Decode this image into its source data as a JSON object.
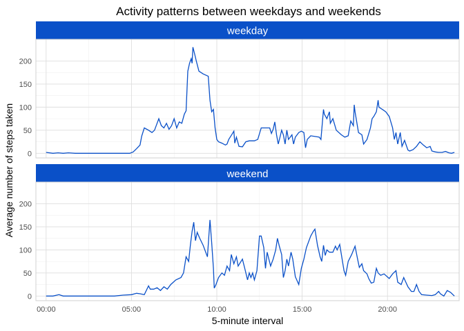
{
  "chart_data": {
    "type": "line",
    "title": "Activity patterns between weekdays and weekends",
    "xlabel": "5-minute interval",
    "ylabel": "Average number of steps taken",
    "x_ticks": [
      "00:00",
      "05:00",
      "10:00",
      "15:00",
      "20:00"
    ],
    "x_tick_hours": [
      0,
      5,
      10,
      15,
      20
    ],
    "y_ticks": [
      0,
      50,
      100,
      150,
      200
    ],
    "xlim_hours": [
      -0.6,
      24.2
    ],
    "ylim": [
      -10,
      247
    ],
    "grid": true,
    "line_color": "#0A50C8",
    "strip_color": "#0A50C8",
    "panels": [
      {
        "label": "weekday",
        "points": [
          [
            0,
            2
          ],
          [
            0.4,
            0
          ],
          [
            0.7,
            1
          ],
          [
            1.0,
            0
          ],
          [
            1.3,
            1
          ],
          [
            1.7,
            0
          ],
          [
            2.0,
            0
          ],
          [
            2.5,
            0
          ],
          [
            3.0,
            0
          ],
          [
            3.5,
            0
          ],
          [
            4.0,
            0
          ],
          [
            4.5,
            0
          ],
          [
            4.9,
            0
          ],
          [
            5.1,
            3
          ],
          [
            5.3,
            10
          ],
          [
            5.5,
            18
          ],
          [
            5.6,
            37
          ],
          [
            5.75,
            55
          ],
          [
            6.0,
            50
          ],
          [
            6.2,
            45
          ],
          [
            6.35,
            50
          ],
          [
            6.5,
            65
          ],
          [
            6.6,
            75
          ],
          [
            6.75,
            60
          ],
          [
            6.9,
            55
          ],
          [
            7.05,
            65
          ],
          [
            7.2,
            52
          ],
          [
            7.35,
            60
          ],
          [
            7.5,
            75
          ],
          [
            7.65,
            55
          ],
          [
            7.8,
            68
          ],
          [
            7.95,
            65
          ],
          [
            8.1,
            85
          ],
          [
            8.2,
            92
          ],
          [
            8.3,
            178
          ],
          [
            8.4,
            195
          ],
          [
            8.5,
            205
          ],
          [
            8.55,
            195
          ],
          [
            8.6,
            230
          ],
          [
            8.7,
            215
          ],
          [
            8.8,
            200
          ],
          [
            8.95,
            178
          ],
          [
            9.2,
            172
          ],
          [
            9.5,
            167
          ],
          [
            9.6,
            115
          ],
          [
            9.7,
            90
          ],
          [
            9.8,
            95
          ],
          [
            9.9,
            55
          ],
          [
            10.0,
            30
          ],
          [
            10.1,
            25
          ],
          [
            10.3,
            22
          ],
          [
            10.5,
            18
          ],
          [
            10.6,
            20
          ],
          [
            10.7,
            30
          ],
          [
            10.9,
            42
          ],
          [
            11.0,
            48
          ],
          [
            11.05,
            22
          ],
          [
            11.15,
            35
          ],
          [
            11.3,
            15
          ],
          [
            11.5,
            14
          ],
          [
            11.7,
            25
          ],
          [
            11.9,
            27
          ],
          [
            12.2,
            27
          ],
          [
            12.4,
            30
          ],
          [
            12.6,
            55
          ],
          [
            12.9,
            55
          ],
          [
            13.1,
            55
          ],
          [
            13.2,
            43
          ],
          [
            13.3,
            52
          ],
          [
            13.4,
            68
          ],
          [
            13.5,
            40
          ],
          [
            13.6,
            20
          ],
          [
            13.7,
            35
          ],
          [
            13.8,
            50
          ],
          [
            13.9,
            40
          ],
          [
            14.0,
            20
          ],
          [
            14.1,
            50
          ],
          [
            14.2,
            30
          ],
          [
            14.3,
            35
          ],
          [
            14.4,
            40
          ],
          [
            14.5,
            20
          ],
          [
            14.6,
            35
          ],
          [
            14.8,
            45
          ],
          [
            14.95,
            48
          ],
          [
            15.1,
            45
          ],
          [
            15.2,
            12
          ],
          [
            15.3,
            30
          ],
          [
            15.5,
            38
          ],
          [
            16.0,
            35
          ],
          [
            16.1,
            30
          ],
          [
            16.25,
            95
          ],
          [
            16.3,
            85
          ],
          [
            16.45,
            75
          ],
          [
            16.6,
            90
          ],
          [
            16.65,
            65
          ],
          [
            16.8,
            75
          ],
          [
            17.0,
            50
          ],
          [
            17.3,
            40
          ],
          [
            17.5,
            35
          ],
          [
            17.7,
            38
          ],
          [
            17.85,
            70
          ],
          [
            18.0,
            60
          ],
          [
            18.05,
            105
          ],
          [
            18.1,
            90
          ],
          [
            18.3,
            45
          ],
          [
            18.5,
            40
          ],
          [
            18.6,
            20
          ],
          [
            18.8,
            30
          ],
          [
            19.0,
            55
          ],
          [
            19.1,
            75
          ],
          [
            19.2,
            80
          ],
          [
            19.35,
            90
          ],
          [
            19.45,
            115
          ],
          [
            19.5,
            100
          ],
          [
            19.7,
            95
          ],
          [
            19.9,
            90
          ],
          [
            20.1,
            80
          ],
          [
            20.3,
            55
          ],
          [
            20.4,
            30
          ],
          [
            20.5,
            45
          ],
          [
            20.6,
            20
          ],
          [
            20.75,
            45
          ],
          [
            20.85,
            15
          ],
          [
            21.0,
            28
          ],
          [
            21.2,
            7
          ],
          [
            21.3,
            5
          ],
          [
            21.5,
            8
          ],
          [
            21.7,
            15
          ],
          [
            21.9,
            25
          ],
          [
            22.1,
            18
          ],
          [
            22.3,
            12
          ],
          [
            22.5,
            15
          ],
          [
            22.6,
            5
          ],
          [
            22.8,
            3
          ],
          [
            23.0,
            2
          ],
          [
            23.2,
            2
          ],
          [
            23.4,
            4
          ],
          [
            23.6,
            1
          ],
          [
            23.75,
            0
          ],
          [
            23.92,
            2
          ]
        ]
      },
      {
        "label": "weekend",
        "points": [
          [
            0,
            0
          ],
          [
            0.4,
            0
          ],
          [
            0.75,
            3
          ],
          [
            1.0,
            0
          ],
          [
            1.5,
            0
          ],
          [
            2.0,
            0
          ],
          [
            2.5,
            0
          ],
          [
            3.0,
            0
          ],
          [
            3.5,
            0
          ],
          [
            4.0,
            0
          ],
          [
            4.5,
            2
          ],
          [
            5.0,
            3
          ],
          [
            5.3,
            6
          ],
          [
            5.5,
            5
          ],
          [
            5.75,
            3
          ],
          [
            6.0,
            22
          ],
          [
            6.1,
            15
          ],
          [
            6.3,
            15
          ],
          [
            6.5,
            18
          ],
          [
            6.7,
            12
          ],
          [
            6.9,
            20
          ],
          [
            7.1,
            15
          ],
          [
            7.3,
            25
          ],
          [
            7.6,
            35
          ],
          [
            7.9,
            40
          ],
          [
            8.05,
            50
          ],
          [
            8.2,
            85
          ],
          [
            8.35,
            75
          ],
          [
            8.45,
            110
          ],
          [
            8.55,
            140
          ],
          [
            8.65,
            160
          ],
          [
            8.75,
            120
          ],
          [
            8.85,
            138
          ],
          [
            9.0,
            125
          ],
          [
            9.2,
            110
          ],
          [
            9.35,
            95
          ],
          [
            9.45,
            85
          ],
          [
            9.6,
            165
          ],
          [
            9.7,
            115
          ],
          [
            9.8,
            60
          ],
          [
            9.85,
            17
          ],
          [
            9.95,
            25
          ],
          [
            10.1,
            40
          ],
          [
            10.3,
            50
          ],
          [
            10.45,
            45
          ],
          [
            10.6,
            65
          ],
          [
            10.75,
            55
          ],
          [
            10.85,
            90
          ],
          [
            11.0,
            70
          ],
          [
            11.15,
            85
          ],
          [
            11.25,
            65
          ],
          [
            11.5,
            80
          ],
          [
            11.65,
            58
          ],
          [
            11.8,
            35
          ],
          [
            11.9,
            50
          ],
          [
            12.0,
            40
          ],
          [
            12.1,
            50
          ],
          [
            12.2,
            35
          ],
          [
            12.35,
            55
          ],
          [
            12.5,
            130
          ],
          [
            12.6,
            130
          ],
          [
            12.75,
            105
          ],
          [
            12.85,
            60
          ],
          [
            12.95,
            95
          ],
          [
            13.15,
            65
          ],
          [
            13.3,
            80
          ],
          [
            13.45,
            100
          ],
          [
            13.55,
            125
          ],
          [
            13.65,
            110
          ],
          [
            13.8,
            90
          ],
          [
            13.9,
            40
          ],
          [
            14.0,
            55
          ],
          [
            14.1,
            80
          ],
          [
            14.2,
            65
          ],
          [
            14.35,
            95
          ],
          [
            14.45,
            80
          ],
          [
            14.6,
            42
          ],
          [
            14.8,
            25
          ],
          [
            14.95,
            60
          ],
          [
            15.1,
            80
          ],
          [
            15.25,
            105
          ],
          [
            15.5,
            130
          ],
          [
            15.65,
            140
          ],
          [
            15.75,
            145
          ],
          [
            15.9,
            110
          ],
          [
            16.05,
            85
          ],
          [
            16.15,
            75
          ],
          [
            16.25,
            110
          ],
          [
            16.35,
            88
          ],
          [
            16.45,
            100
          ],
          [
            16.6,
            95
          ],
          [
            16.8,
            95
          ],
          [
            16.95,
            108
          ],
          [
            17.05,
            100
          ],
          [
            17.2,
            112
          ],
          [
            17.3,
            90
          ],
          [
            17.45,
            55
          ],
          [
            17.55,
            45
          ],
          [
            17.7,
            75
          ],
          [
            17.9,
            90
          ],
          [
            18.1,
            108
          ],
          [
            18.25,
            80
          ],
          [
            18.35,
            62
          ],
          [
            18.5,
            70
          ],
          [
            18.6,
            55
          ],
          [
            18.8,
            48
          ],
          [
            18.9,
            38
          ],
          [
            19.05,
            28
          ],
          [
            19.2,
            30
          ],
          [
            19.35,
            60
          ],
          [
            19.45,
            50
          ],
          [
            19.6,
            45
          ],
          [
            19.8,
            48
          ],
          [
            20.1,
            38
          ],
          [
            20.3,
            48
          ],
          [
            20.5,
            55
          ],
          [
            20.6,
            30
          ],
          [
            20.8,
            25
          ],
          [
            20.95,
            40
          ],
          [
            21.2,
            20
          ],
          [
            21.4,
            10
          ],
          [
            21.55,
            10
          ],
          [
            21.7,
            25
          ],
          [
            21.85,
            10
          ],
          [
            22.0,
            3
          ],
          [
            22.3,
            2
          ],
          [
            22.6,
            1
          ],
          [
            22.8,
            3
          ],
          [
            23.0,
            10
          ],
          [
            23.1,
            5
          ],
          [
            23.3,
            0
          ],
          [
            23.5,
            12
          ],
          [
            23.7,
            8
          ],
          [
            23.92,
            0
          ]
        ]
      }
    ]
  }
}
